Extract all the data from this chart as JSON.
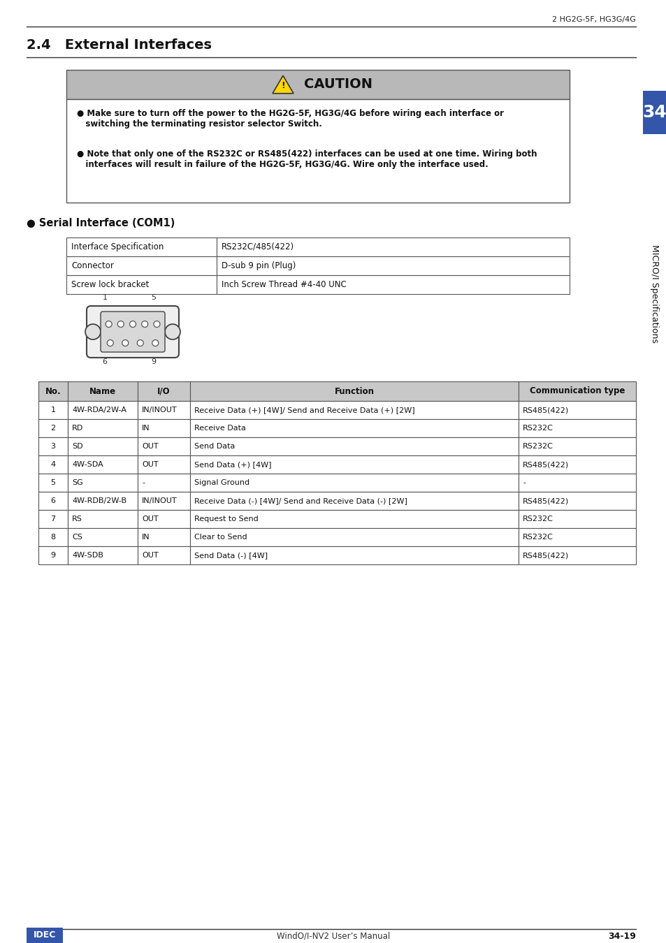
{
  "page_header_right": "2 HG2G-5F, HG3G/4G",
  "section_title": "2.4   External Interfaces",
  "caution_title": "CAUTION",
  "caution_line1": "● Make sure to turn off the power to the HG2G-5F, HG3G/4G before wiring each interface or\n   switching the terminating resistor selector Switch.",
  "caution_line2": "● Note that only one of the RS232C or RS485(422) interfaces can be used at one time. Wiring both\n   interfaces will result in failure of the HG2G-5F, HG3G/4G. Wire only the interface used.",
  "serial_label": "● Serial Interface (COM1)",
  "spec_table": [
    [
      "Interface Specification",
      "RS232C/485(422)"
    ],
    [
      "Connector",
      "D-sub 9 pin (Plug)"
    ],
    [
      "Screw lock bracket",
      "Inch Screw Thread #4-40 UNC"
    ]
  ],
  "main_table_headers": [
    "No.",
    "Name",
    "I/O",
    "Function",
    "Communication type"
  ],
  "main_table_rows": [
    [
      "1",
      "4W-RDA/2W-A",
      "IN/INOUT",
      "Receive Data (+) [4W]/ Send and Receive Data (+) [2W]",
      "RS485(422)"
    ],
    [
      "2",
      "RD",
      "IN",
      "Receive Data",
      "RS232C"
    ],
    [
      "3",
      "SD",
      "OUT",
      "Send Data",
      "RS232C"
    ],
    [
      "4",
      "4W-SDA",
      "OUT",
      "Send Data (+) [4W]",
      "RS485(422)"
    ],
    [
      "5",
      "SG",
      "-",
      "Signal Ground",
      "-"
    ],
    [
      "6",
      "4W-RDB/2W-B",
      "IN/INOUT",
      "Receive Data (-) [4W]/ Send and Receive Data (-) [2W]",
      "RS485(422)"
    ],
    [
      "7",
      "RS",
      "OUT",
      "Request to Send",
      "RS232C"
    ],
    [
      "8",
      "CS",
      "IN",
      "Clear to Send",
      "RS232C"
    ],
    [
      "9",
      "4W-SDB",
      "OUT",
      "Send Data (-) [4W]",
      "RS485(422)"
    ]
  ],
  "sidebar_text": "MICRO/I Specifications",
  "sidebar_number": "34",
  "footer_left": "IDEC",
  "footer_center": "WindO/I-NV2 User’s Manual",
  "footer_right": "34-19",
  "bg_color": "#ffffff",
  "caution_header_bg": "#b8b8b8",
  "table_header_bg": "#c8c8c8",
  "table_border": "#555555",
  "sidebar_bg": "#3355aa",
  "sidebar_text_color": "#ffffff"
}
